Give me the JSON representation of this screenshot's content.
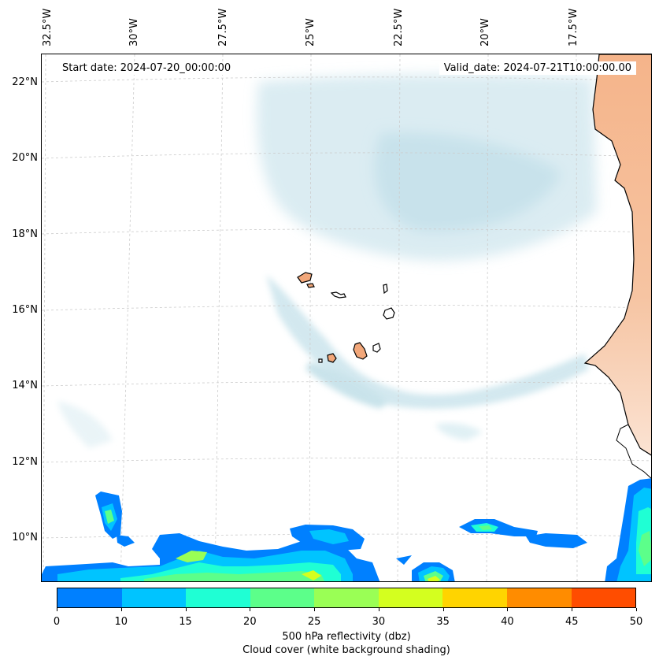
{
  "map": {
    "start_date": "Start date: 2024-07-20_00:00:00",
    "valid_date": "Valid_date: 2024-07-21T10:00:00.00",
    "longitude_labels": [
      "32.5°W",
      "30°W",
      "27.5°W",
      "25°W",
      "22.5°W",
      "20°W",
      "17.5°W"
    ],
    "latitude_labels": [
      "22°N",
      "20°N",
      "18°N",
      "16°N",
      "14°N",
      "12°N",
      "10°N"
    ],
    "gridlines": "on, dashed grey",
    "land_color": "#f2a77a",
    "cloud_color": "#bfe0ea"
  },
  "colorbar": {
    "ticks": [
      "0",
      "10",
      "15",
      "20",
      "25",
      "30",
      "35",
      "40",
      "45",
      "50"
    ],
    "colors": [
      "#0080ff",
      "#00c4ff",
      "#1fffd4",
      "#5cff8a",
      "#9aff55",
      "#d4ff1f",
      "#ffd400",
      "#ff8c00",
      "#ff4d00"
    ],
    "label": "500 hPa reflectivity (dbz)",
    "sublabel": "Cloud cover (white background shading)"
  }
}
